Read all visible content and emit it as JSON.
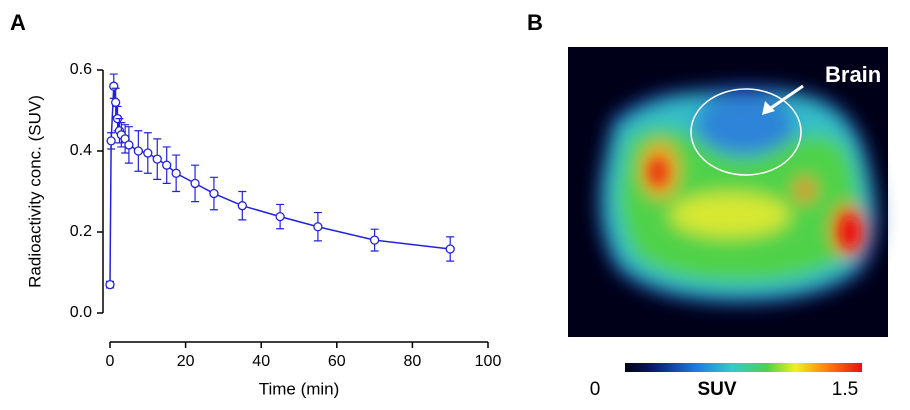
{
  "chart_data": {
    "type": "line",
    "panel_label": "A",
    "x_label": "Time (min)",
    "y_label": "Radioactivity conc. (SUV)",
    "x": [
      0,
      0.3,
      1,
      1.5,
      2,
      2.5,
      3,
      4,
      5,
      7.5,
      10,
      12.5,
      15,
      17.5,
      22.5,
      27.5,
      35,
      45,
      55,
      70,
      90
    ],
    "series": [
      {
        "color": "#2222dd",
        "values": [
          0.07,
          0.425,
          0.56,
          0.52,
          0.48,
          0.45,
          0.44,
          0.43,
          0.415,
          0.4,
          0.395,
          0.38,
          0.365,
          0.345,
          0.32,
          0.295,
          0.265,
          0.238,
          0.213,
          0.18,
          0.158
        ],
        "errors": [
          0.008,
          0.02,
          0.03,
          0.035,
          0.03,
          0.03,
          0.03,
          0.035,
          0.045,
          0.05,
          0.05,
          0.05,
          0.045,
          0.045,
          0.045,
          0.04,
          0.035,
          0.03,
          0.035,
          0.027,
          0.03
        ]
      }
    ],
    "xlim": [
      0,
      100
    ],
    "xticks": [
      0,
      20,
      40,
      60,
      80,
      100
    ],
    "ylim": [
      0,
      0.6
    ],
    "yticks": [
      {
        "value": 0,
        "label": "0.0"
      },
      0.2,
      0.4,
      0.6
    ]
  },
  "panel_b": {
    "label": "B",
    "annotation": "Brain",
    "colorbar": {
      "label": "SUV",
      "lim": [
        0,
        1.5
      ],
      "ticks": [
        0,
        1.5
      ]
    }
  }
}
